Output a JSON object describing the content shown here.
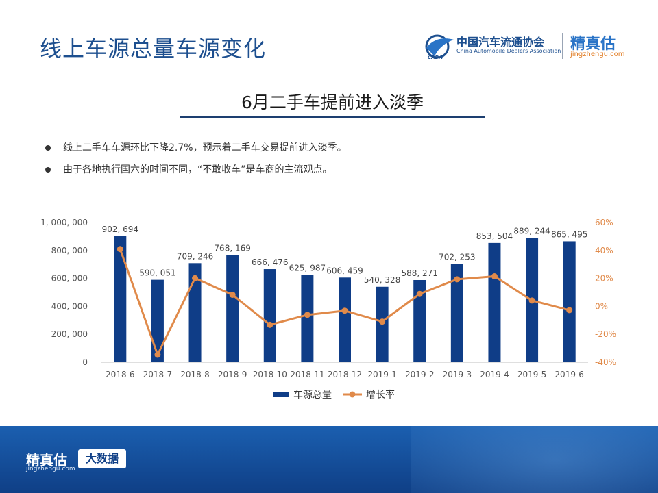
{
  "page": {
    "title": "线上车源总量车源变化",
    "subtitle": "6月二手车提前进入淡季"
  },
  "logos": {
    "cada_cn": "中国汽车流通协会",
    "cada_en": "China Automobile Dealers Association",
    "cada_mark": "CADA",
    "jzg_name": "精真估",
    "jzg_domain": "jingzhengu.com"
  },
  "bullets": [
    "线上二手车车源环比下降2.7%，预示着二手车交易提前进入淡季。",
    "由于各地执行国六的时间不同，“不敢收车”是车商的主流观点。"
  ],
  "footer": {
    "brand": "精真估",
    "domain": "jingzhengu.com",
    "tag": "大数据"
  },
  "colors": {
    "bar": "#0f3d87",
    "line": "#e08a4a",
    "title": "#1d4f8f",
    "footer": "#114690"
  },
  "chart_data": {
    "type": "bar+line",
    "categories": [
      "2018-6",
      "2018-7",
      "2018-8",
      "2018-9",
      "2018-10",
      "2018-11",
      "2018-12",
      "2019-1",
      "2019-2",
      "2019-3",
      "2019-4",
      "2019-5",
      "2019-6"
    ],
    "series": [
      {
        "name": "车源总量",
        "type": "bar",
        "axis": "left",
        "values": [
          902694,
          590051,
          709246,
          768169,
          666476,
          625987,
          606459,
          540328,
          588271,
          702253,
          853504,
          889244,
          865495
        ],
        "labels": [
          "902, 694",
          "590, 051",
          "709, 246",
          "768, 169",
          "666, 476",
          "625, 987",
          "606, 459",
          "540, 328",
          "588, 271",
          "702, 253",
          "853, 504",
          "889, 244",
          "865, 495"
        ]
      },
      {
        "name": "增长率",
        "type": "line",
        "axis": "right",
        "values": [
          41,
          -34.6,
          20.2,
          8.3,
          -13.2,
          -6.1,
          -3.1,
          -10.9,
          8.9,
          19.4,
          21.5,
          4.2,
          -2.7
        ]
      }
    ],
    "left_axis": {
      "min": 0,
      "max": 1000000,
      "ticks": [
        0,
        200000,
        400000,
        600000,
        800000,
        1000000
      ],
      "tick_labels": [
        "0",
        "200, 000",
        "400, 000",
        "600, 000",
        "800, 000",
        "1, 000, 000"
      ]
    },
    "right_axis": {
      "min": -40,
      "max": 60,
      "ticks": [
        -40,
        -20,
        0,
        20,
        40,
        60
      ],
      "tick_labels": [
        "-40%",
        "-20%",
        "0%",
        "20%",
        "40%",
        "60%"
      ]
    },
    "legend": {
      "position": "bottom",
      "items": [
        "车源总量",
        "增长率"
      ]
    }
  }
}
